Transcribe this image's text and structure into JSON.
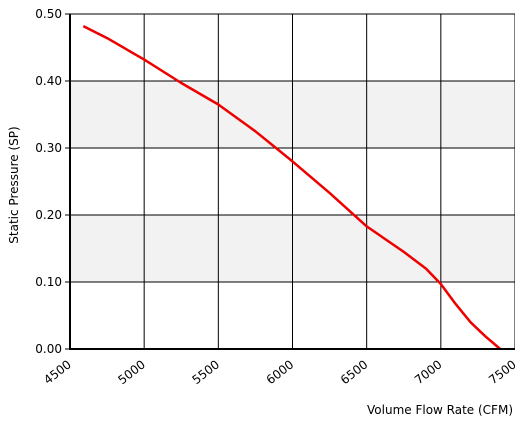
{
  "chart_data": {
    "type": "line",
    "title": "",
    "xlabel": "Volume Flow Rate (CFM)",
    "ylabel": "Static Pressure (SP)",
    "xlim": [
      4500,
      7500
    ],
    "ylim": [
      0,
      0.5
    ],
    "x_ticks": [
      "4500",
      "5000",
      "5500",
      "6000",
      "6500",
      "7000",
      "7500"
    ],
    "y_ticks": [
      "0.00",
      "0.10",
      "0.20",
      "0.30",
      "0.40",
      "0.50"
    ],
    "grid": true,
    "banded_background": true,
    "series": [
      {
        "color": "#ee0000",
        "x": [
          4590,
          4750,
          5000,
          5250,
          5500,
          5750,
          6000,
          6250,
          6500,
          6750,
          6900,
          7000,
          7100,
          7200,
          7300,
          7400
        ],
        "y": [
          0.482,
          0.464,
          0.432,
          0.397,
          0.365,
          0.325,
          0.28,
          0.233,
          0.183,
          0.145,
          0.12,
          0.097,
          0.067,
          0.04,
          0.019,
          0.0
        ]
      }
    ]
  }
}
